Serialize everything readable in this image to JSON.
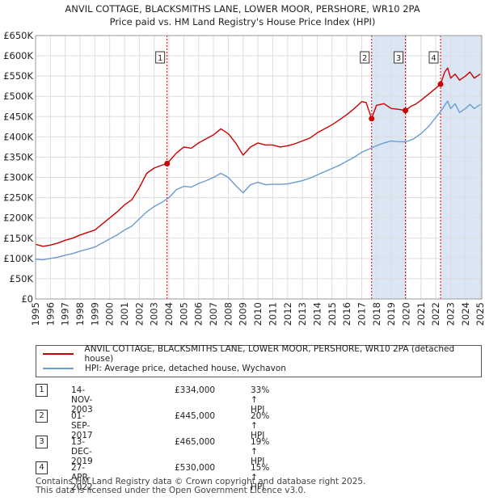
{
  "title_line1": "ANVIL COTTAGE, BLACKSMITHS LANE, LOWER MOOR, PERSHORE, WR10 2PA",
  "title_line2": "Price paid vs. HM Land Registry's House Price Index (HPI)",
  "colors": {
    "property": "#cc0000",
    "hpi": "#6a9bd1",
    "shade": "#dbe6f5",
    "marker_line": "#cc0000"
  },
  "chart_data": {
    "type": "line",
    "xlim": [
      1995.0,
      2025.1
    ],
    "ylim": [
      0,
      650000
    ],
    "y_ticks": [
      0,
      50000,
      100000,
      150000,
      200000,
      250000,
      300000,
      350000,
      400000,
      450000,
      500000,
      550000,
      600000,
      650000
    ],
    "y_tick_labels": [
      "£0",
      "£50K",
      "£100K",
      "£150K",
      "£200K",
      "£250K",
      "£300K",
      "£350K",
      "£400K",
      "£450K",
      "£500K",
      "£550K",
      "£600K",
      "£650K"
    ],
    "x_tick_labels": [
      "1995",
      "1996",
      "1997",
      "1998",
      "1999",
      "2000",
      "2001",
      "2002",
      "2003",
      "2004",
      "2005",
      "2006",
      "2007",
      "2008",
      "2009",
      "2010",
      "2011",
      "2012",
      "2013",
      "2014",
      "2015",
      "2016",
      "2017",
      "2018",
      "2019",
      "2020",
      "2021",
      "2022",
      "2023",
      "2024",
      "2025"
    ],
    "series": [
      {
        "name": "ANVIL COTTAGE, BLACKSMITHS LANE, LOWER MOOR, PERSHORE, WR10 2PA (detached house)",
        "x": [
          1995.0,
          1995.5,
          1996.0,
          1996.5,
          1997.0,
          1997.5,
          1998.0,
          1998.5,
          1999.0,
          1999.5,
          2000.0,
          2000.5,
          2001.0,
          2001.5,
          2002.0,
          2002.5,
          2003.0,
          2003.5,
          2003.87,
          2004.5,
          2005.0,
          2005.5,
          2006.0,
          2006.5,
          2007.0,
          2007.5,
          2008.0,
          2008.5,
          2009.0,
          2009.5,
          2010.0,
          2010.5,
          2011.0,
          2011.5,
          2012.0,
          2012.5,
          2013.0,
          2013.5,
          2014.0,
          2014.5,
          2015.0,
          2015.5,
          2016.0,
          2016.5,
          2017.0,
          2017.3,
          2017.67,
          2018.0,
          2018.5,
          2019.0,
          2019.5,
          2019.95,
          2020.3,
          2020.6,
          2021.0,
          2021.5,
          2022.0,
          2022.32,
          2022.6,
          2022.8,
          2023.0,
          2023.3,
          2023.6,
          2024.0,
          2024.3,
          2024.6,
          2025.0
        ],
        "y": [
          135000,
          130000,
          133000,
          138000,
          145000,
          150000,
          158000,
          164000,
          170000,
          185000,
          200000,
          215000,
          232000,
          245000,
          275000,
          310000,
          323000,
          330000,
          334000,
          360000,
          375000,
          372000,
          385000,
          395000,
          405000,
          420000,
          408000,
          385000,
          355000,
          375000,
          385000,
          380000,
          380000,
          375000,
          378000,
          383000,
          390000,
          397000,
          410000,
          420000,
          430000,
          442000,
          455000,
          470000,
          487000,
          485000,
          445000,
          478000,
          482000,
          470000,
          468000,
          465000,
          475000,
          480000,
          490000,
          505000,
          520000,
          530000,
          560000,
          570000,
          545000,
          555000,
          540000,
          550000,
          560000,
          545000,
          555000
        ]
      },
      {
        "name": "HPI: Average price, detached house, Wychavon",
        "x": [
          1995.0,
          1995.5,
          1996.0,
          1996.5,
          1997.0,
          1997.5,
          1998.0,
          1998.5,
          1999.0,
          1999.5,
          2000.0,
          2000.5,
          2001.0,
          2001.5,
          2002.0,
          2002.5,
          2003.0,
          2003.5,
          2004.0,
          2004.5,
          2005.0,
          2005.5,
          2006.0,
          2006.5,
          2007.0,
          2007.5,
          2008.0,
          2008.5,
          2009.0,
          2009.5,
          2010.0,
          2010.5,
          2011.0,
          2011.5,
          2012.0,
          2012.5,
          2013.0,
          2013.5,
          2014.0,
          2014.5,
          2015.0,
          2015.5,
          2016.0,
          2016.5,
          2017.0,
          2017.5,
          2018.0,
          2018.5,
          2019.0,
          2019.5,
          2020.0,
          2020.5,
          2021.0,
          2021.5,
          2022.0,
          2022.3,
          2022.6,
          2022.8,
          2023.0,
          2023.3,
          2023.6,
          2024.0,
          2024.3,
          2024.6,
          2025.0
        ],
        "y": [
          98000,
          97000,
          100000,
          103000,
          108000,
          112000,
          118000,
          123000,
          128000,
          138000,
          148000,
          158000,
          170000,
          180000,
          198000,
          215000,
          228000,
          238000,
          250000,
          270000,
          278000,
          276000,
          285000,
          292000,
          300000,
          310000,
          300000,
          280000,
          262000,
          282000,
          288000,
          282000,
          283000,
          283000,
          284000,
          288000,
          292000,
          298000,
          306000,
          314000,
          322000,
          330000,
          340000,
          350000,
          362000,
          370000,
          378000,
          385000,
          390000,
          388000,
          388000,
          395000,
          408000,
          425000,
          448000,
          462000,
          478000,
          488000,
          470000,
          482000,
          460000,
          470000,
          480000,
          470000,
          480000
        ]
      }
    ],
    "sales": [
      {
        "label": "1",
        "x": 2003.87,
        "price": 334000,
        "date": "14-NOV-2003",
        "price_label": "£334,000",
        "hpi_label": "33% ↑ HPI"
      },
      {
        "label": "2",
        "x": 2017.67,
        "price": 445000,
        "date": "01-SEP-2017",
        "price_label": "£445,000",
        "hpi_label": "20% ↑ HPI"
      },
      {
        "label": "3",
        "x": 2019.95,
        "price": 465000,
        "date": "13-DEC-2019",
        "price_label": "£465,000",
        "hpi_label": "19% ↑ HPI"
      },
      {
        "label": "4",
        "x": 2022.32,
        "price": 530000,
        "date": "27-APR-2022",
        "price_label": "£530,000",
        "hpi_label": "15% ↑ HPI"
      }
    ],
    "shaded_ranges": [
      [
        2017.67,
        2019.95
      ],
      [
        2022.32,
        2025.1
      ]
    ],
    "hatched_after": 2025.0
  },
  "legend": {
    "property_label": "ANVIL COTTAGE, BLACKSMITHS LANE, LOWER MOOR, PERSHORE, WR10 2PA (detached house)",
    "hpi_label": "HPI: Average price, detached house, Wychavon"
  },
  "footer": {
    "line1": "Contains HM Land Registry data © Crown copyright and database right 2025.",
    "line2": "This data is licensed under the Open Government Licence v3.0."
  }
}
